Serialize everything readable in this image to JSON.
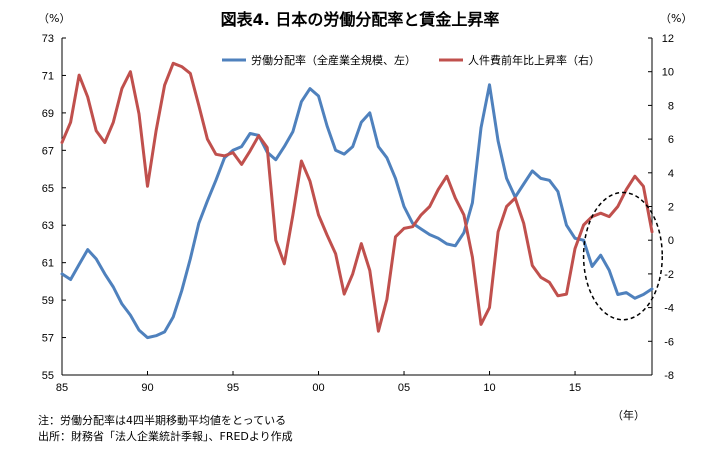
{
  "chart_data": {
    "type": "line",
    "title": "図表4. 日本の労働分配率と賃金上昇率",
    "left_unit": "（%）",
    "right_unit": "（%）",
    "x_unit": "（年）",
    "x_range": [
      1985,
      2019.5
    ],
    "x_ticks": [
      {
        "value": 1985,
        "label": "85"
      },
      {
        "value": 1990,
        "label": "90"
      },
      {
        "value": 1995,
        "label": "95"
      },
      {
        "value": 2000,
        "label": "00"
      },
      {
        "value": 2005,
        "label": "05"
      },
      {
        "value": 2010,
        "label": "10"
      },
      {
        "value": 2015,
        "label": "15"
      }
    ],
    "y_left": {
      "min": 55,
      "max": 73,
      "ticks": [
        55,
        57,
        59,
        61,
        63,
        65,
        67,
        69,
        71,
        73
      ]
    },
    "y_right": {
      "min": -8,
      "max": 12,
      "ticks": [
        -8,
        -6,
        -4,
        -2,
        0,
        2,
        4,
        6,
        8,
        10,
        12
      ]
    },
    "grid": false,
    "legend_position": "top",
    "annotation": {
      "shape": "dashed-ellipse",
      "x_center": 2017.8,
      "y_left_center": 61.35,
      "x_radius": 2.3,
      "y_radius": 3.4
    },
    "series": [
      {
        "name": "労働分配率（全産業全規模、左）",
        "axis": "left",
        "color": "#4F81BD",
        "points": [
          [
            1985.0,
            60.4
          ],
          [
            1985.5,
            60.1
          ],
          [
            1986.0,
            60.9
          ],
          [
            1986.5,
            61.7
          ],
          [
            1987.0,
            61.2
          ],
          [
            1987.5,
            60.4
          ],
          [
            1988.0,
            59.7
          ],
          [
            1988.5,
            58.8
          ],
          [
            1989.0,
            58.2
          ],
          [
            1989.5,
            57.4
          ],
          [
            1990.0,
            57.0
          ],
          [
            1990.5,
            57.1
          ],
          [
            1991.0,
            57.3
          ],
          [
            1991.5,
            58.1
          ],
          [
            1992.0,
            59.5
          ],
          [
            1992.5,
            61.2
          ],
          [
            1993.0,
            63.1
          ],
          [
            1993.5,
            64.3
          ],
          [
            1994.0,
            65.4
          ],
          [
            1994.5,
            66.6
          ],
          [
            1995.0,
            67.0
          ],
          [
            1995.5,
            67.2
          ],
          [
            1996.0,
            67.9
          ],
          [
            1996.5,
            67.8
          ],
          [
            1997.0,
            66.9
          ],
          [
            1997.5,
            66.5
          ],
          [
            1998.0,
            67.2
          ],
          [
            1998.5,
            68.0
          ],
          [
            1999.0,
            69.6
          ],
          [
            1999.5,
            70.3
          ],
          [
            2000.0,
            69.9
          ],
          [
            2000.5,
            68.3
          ],
          [
            2001.0,
            67.0
          ],
          [
            2001.5,
            66.8
          ],
          [
            2002.0,
            67.2
          ],
          [
            2002.5,
            68.5
          ],
          [
            2003.0,
            69.0
          ],
          [
            2003.5,
            67.2
          ],
          [
            2004.0,
            66.6
          ],
          [
            2004.5,
            65.5
          ],
          [
            2005.0,
            64.0
          ],
          [
            2005.5,
            63.1
          ],
          [
            2006.0,
            62.8
          ],
          [
            2006.5,
            62.5
          ],
          [
            2007.0,
            62.3
          ],
          [
            2007.5,
            62.0
          ],
          [
            2008.0,
            61.9
          ],
          [
            2008.5,
            62.6
          ],
          [
            2009.0,
            64.2
          ],
          [
            2009.5,
            68.2
          ],
          [
            2010.0,
            70.5
          ],
          [
            2010.5,
            67.5
          ],
          [
            2011.0,
            65.5
          ],
          [
            2011.5,
            64.5
          ],
          [
            2012.0,
            65.2
          ],
          [
            2012.5,
            65.9
          ],
          [
            2013.0,
            65.5
          ],
          [
            2013.5,
            65.4
          ],
          [
            2014.0,
            64.8
          ],
          [
            2014.5,
            63.0
          ],
          [
            2015.0,
            62.3
          ],
          [
            2015.5,
            62.2
          ],
          [
            2016.0,
            60.8
          ],
          [
            2016.5,
            61.4
          ],
          [
            2017.0,
            60.6
          ],
          [
            2017.5,
            59.3
          ],
          [
            2018.0,
            59.4
          ],
          [
            2018.5,
            59.1
          ],
          [
            2019.0,
            59.3
          ],
          [
            2019.5,
            59.6
          ]
        ]
      },
      {
        "name": "人件費前年比上昇率（右）",
        "axis": "right",
        "color": "#C0504D",
        "points": [
          [
            1985.0,
            5.8
          ],
          [
            1985.5,
            7.0
          ],
          [
            1986.0,
            9.8
          ],
          [
            1986.5,
            8.5
          ],
          [
            1987.0,
            6.5
          ],
          [
            1987.5,
            5.8
          ],
          [
            1988.0,
            7.0
          ],
          [
            1988.5,
            9.0
          ],
          [
            1989.0,
            10.0
          ],
          [
            1989.5,
            7.5
          ],
          [
            1990.0,
            3.2
          ],
          [
            1990.5,
            6.5
          ],
          [
            1991.0,
            9.2
          ],
          [
            1991.5,
            10.5
          ],
          [
            1992.0,
            10.3
          ],
          [
            1992.5,
            9.9
          ],
          [
            1993.0,
            8.0
          ],
          [
            1993.5,
            6.0
          ],
          [
            1994.0,
            5.1
          ],
          [
            1994.5,
            5.0
          ],
          [
            1995.0,
            5.2
          ],
          [
            1995.5,
            4.5
          ],
          [
            1996.0,
            5.3
          ],
          [
            1996.5,
            6.2
          ],
          [
            1997.0,
            5.5
          ],
          [
            1997.5,
            0.0
          ],
          [
            1998.0,
            -1.4
          ],
          [
            1998.5,
            1.5
          ],
          [
            1999.0,
            4.7
          ],
          [
            1999.5,
            3.5
          ],
          [
            2000.0,
            1.5
          ],
          [
            2000.5,
            0.3
          ],
          [
            2001.0,
            -0.8
          ],
          [
            2001.5,
            -3.2
          ],
          [
            2002.0,
            -2.0
          ],
          [
            2002.5,
            -0.2
          ],
          [
            2003.0,
            -1.8
          ],
          [
            2003.5,
            -5.4
          ],
          [
            2004.0,
            -3.5
          ],
          [
            2004.5,
            0.2
          ],
          [
            2005.0,
            0.7
          ],
          [
            2005.5,
            0.8
          ],
          [
            2006.0,
            1.5
          ],
          [
            2006.5,
            2.0
          ],
          [
            2007.0,
            3.0
          ],
          [
            2007.5,
            3.8
          ],
          [
            2008.0,
            2.5
          ],
          [
            2008.5,
            1.5
          ],
          [
            2009.0,
            -1.0
          ],
          [
            2009.5,
            -5.0
          ],
          [
            2010.0,
            -4.0
          ],
          [
            2010.5,
            0.5
          ],
          [
            2011.0,
            2.0
          ],
          [
            2011.5,
            2.5
          ],
          [
            2012.0,
            1.0
          ],
          [
            2012.5,
            -1.5
          ],
          [
            2013.0,
            -2.2
          ],
          [
            2013.5,
            -2.5
          ],
          [
            2014.0,
            -3.3
          ],
          [
            2014.5,
            -3.2
          ],
          [
            2015.0,
            -0.5
          ],
          [
            2015.5,
            0.9
          ],
          [
            2016.0,
            1.4
          ],
          [
            2016.5,
            1.6
          ],
          [
            2017.0,
            1.4
          ],
          [
            2017.5,
            2.0
          ],
          [
            2018.0,
            3.0
          ],
          [
            2018.5,
            3.8
          ],
          [
            2019.0,
            3.2
          ],
          [
            2019.5,
            0.5
          ]
        ]
      }
    ]
  },
  "notes": [
    "注：労働分配率は4四半期移動平均値をとっている",
    "出所：財務省「法人企業統計季報」、FREDより作成"
  ]
}
